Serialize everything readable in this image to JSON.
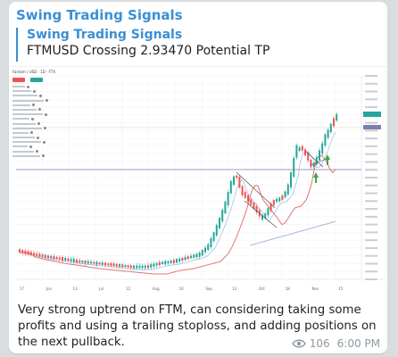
{
  "message": {
    "channel_name": "Swing Trading Signals",
    "reply_quote": {
      "title": "Swing Trading Signals",
      "text": "FTMUSD Crossing 2.93470 Potential TP"
    },
    "caption": "Very strong uptrend on FTM, can considering taking some profits and using a trailing stoploss, and adding positions on the next pullback.",
    "views": "106",
    "time": "6:00 PM"
  },
  "chart": {
    "symbol_line": "Fantom / USD · 1D · FTX",
    "x_tick_labels": [
      "17",
      "Jun",
      "13",
      "Jul",
      "12",
      "Aug",
      "16",
      "Sep",
      "13",
      "Oct",
      "18",
      "Nov",
      "15"
    ]
  },
  "colors": {
    "accent": "#3a8fd3",
    "up_candle": "#26a69a",
    "down_candle": "#ef5350",
    "ma_red": "#e57373",
    "ma_blue": "#90a4d6"
  }
}
